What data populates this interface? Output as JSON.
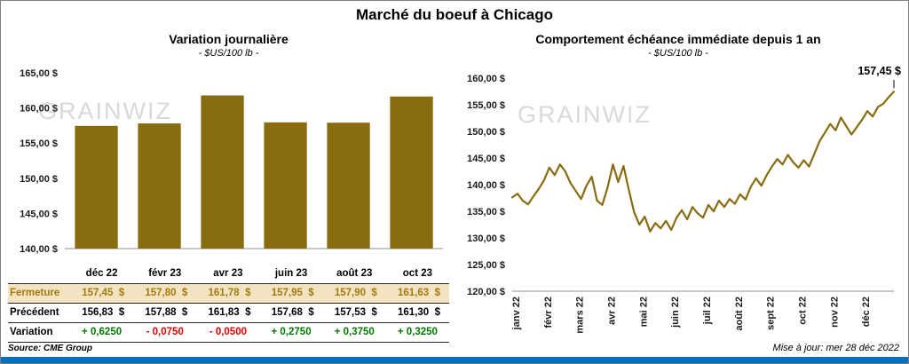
{
  "page": {
    "title": "Marché du boeuf à Chicago",
    "watermark": "GRAINWIZ",
    "source": "Source: CME Group",
    "updated": "Mise à jour: mer 28 déc 2022"
  },
  "colors": {
    "gold": "#8a6c10",
    "fermeture_bg": "#f2e3c1",
    "fermeture_text": "#a5790e",
    "positive": "#007a00",
    "negative": "#e60000",
    "footer_bar": "#0070c0",
    "watermark": "#d9d9d9"
  },
  "chart_data": [
    {
      "type": "bar",
      "title": "Variation journalière",
      "subtitle": "- $US/100 lb -",
      "categories": [
        "déc 22",
        "févr 23",
        "avr 23",
        "juin 23",
        "août 23",
        "oct 23"
      ],
      "values": [
        157.45,
        157.8,
        161.78,
        157.95,
        157.9,
        161.63
      ],
      "ylim": [
        140,
        165
      ],
      "ytick_step": 5,
      "ytick_labels": [
        "140,00 $",
        "145,00 $",
        "150,00 $",
        "155,00 $",
        "160,00 $",
        "165,00 $"
      ],
      "grid": false,
      "legend": "none"
    },
    {
      "type": "line",
      "title": "Comportement échéance immédiate depuis 1 an",
      "subtitle": "- $US/100 lb -",
      "x_labels": [
        "janv 22",
        "févr 22",
        "mars 22",
        "avr 22",
        "mai 22",
        "juin 22",
        "juil 22",
        "août 22",
        "sept 22",
        "oct 22",
        "nov 22",
        "déc 22"
      ],
      "values": [
        137.6,
        138.3,
        137.0,
        136.3,
        137.8,
        139.2,
        140.8,
        143.2,
        141.8,
        143.8,
        142.5,
        140.3,
        138.8,
        137.3,
        139.8,
        141.5,
        137.0,
        136.2,
        139.5,
        143.8,
        140.5,
        143.5,
        139.0,
        134.8,
        132.5,
        134.0,
        131.2,
        132.8,
        131.8,
        133.2,
        131.5,
        133.8,
        135.2,
        133.5,
        135.8,
        134.6,
        133.8,
        136.2,
        135.0,
        137.0,
        135.8,
        137.3,
        136.4,
        138.2,
        137.2,
        139.6,
        141.2,
        139.8,
        141.8,
        143.4,
        144.8,
        143.8,
        145.6,
        144.2,
        143.2,
        144.6,
        143.4,
        145.8,
        148.2,
        149.8,
        151.4,
        150.2,
        152.6,
        151.0,
        149.4,
        150.8,
        152.2,
        153.8,
        152.8,
        154.6,
        155.2,
        156.4,
        157.45
      ],
      "ylim": [
        120,
        160
      ],
      "ytick_step": 5,
      "ytick_labels": [
        "120,00 $",
        "125,00 $",
        "130,00 $",
        "135,00 $",
        "140,00 $",
        "145,00 $",
        "150,00 $",
        "155,00 $",
        "160,00 $"
      ],
      "annotation": "157,45 $",
      "grid": false,
      "legend": "none"
    }
  ],
  "table": {
    "columns": [
      "déc 22",
      "févr 23",
      "avr 23",
      "juin 23",
      "août 23",
      "oct 23"
    ],
    "rows": [
      {
        "label": "Fermeture",
        "style": "fermeture",
        "values": [
          "157,45  $",
          "157,80  $",
          "161,78  $",
          "157,95  $",
          "157,90  $",
          "161,63  $"
        ]
      },
      {
        "label": "Précédent",
        "style": "normal",
        "values": [
          "156,83  $",
          "157,88  $",
          "161,83  $",
          "157,68  $",
          "157,53  $",
          "161,30  $"
        ]
      },
      {
        "label": "Variation",
        "style": "variation",
        "values": [
          "+ 0,6250",
          "- 0,0750",
          "- 0,0500",
          "+ 0,2750",
          "+ 0,3750",
          "+ 0,3250"
        ]
      }
    ]
  }
}
